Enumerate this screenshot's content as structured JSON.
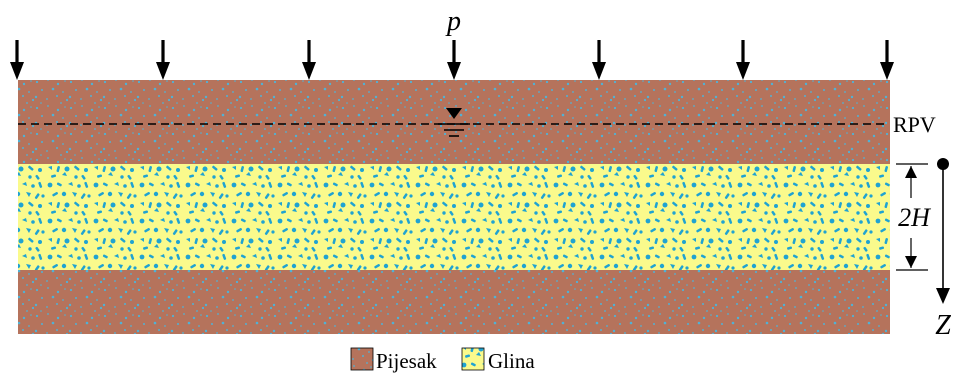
{
  "labels": {
    "load": "p",
    "water_table": "RPV",
    "thickness": "2H",
    "depth_axis": "Z"
  },
  "legend": {
    "sand": "Pijesak",
    "clay": "Glina"
  },
  "colors": {
    "sand": "#b5735c",
    "sand_dots": "#4fb2d6",
    "clay": "#fafa8c",
    "clay_spots": "#1fa3d2",
    "line": "#000000"
  }
}
